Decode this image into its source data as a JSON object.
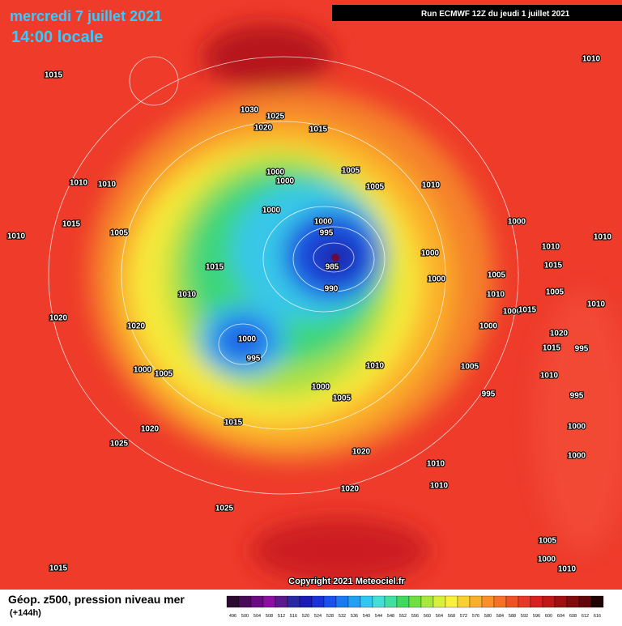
{
  "header": {
    "date": "mercredi 7 juillet 2021",
    "time": "14:00 locale",
    "run": "Run ECMWF 12Z du jeudi 1 juillet 2021"
  },
  "copyright": "Copyright 2021 Meteociel.fr",
  "legend": {
    "title": "Géop. z500, pression niveau mer",
    "lead": "(+144h)",
    "labels": [
      496,
      500,
      504,
      508,
      512,
      516,
      520,
      524,
      528,
      532,
      536,
      540,
      544,
      548,
      552,
      556,
      560,
      564,
      568,
      572,
      576,
      580,
      584,
      588,
      592,
      596,
      600,
      604,
      608,
      612,
      616
    ]
  },
  "isobar_labels": [
    "1015",
    "1010",
    "1030",
    "1025",
    "1020",
    "1015",
    "1005",
    "1000",
    "1000",
    "1005",
    "1010",
    "1010",
    "1010",
    "1000",
    "1000",
    "1000",
    "1015",
    "995",
    "1005",
    "1010",
    "1010",
    "1010",
    "985",
    "1000",
    "1015",
    "1015",
    "1005",
    "1000",
    "990",
    "1010",
    "1010",
    "1005",
    "1000",
    "1015",
    "1020",
    "1020",
    "1000",
    "1000",
    "1020",
    "1010",
    "995",
    "1015",
    "995",
    "1000",
    "1005",
    "1010",
    "1005",
    "1010",
    "1000",
    "1005",
    "995",
    "995",
    "1015",
    "1020",
    "1000",
    "1025",
    "1020",
    "1000",
    "1010",
    "1020",
    "1010",
    "1025",
    "1015",
    "1005",
    "1000",
    "1010"
  ]
}
